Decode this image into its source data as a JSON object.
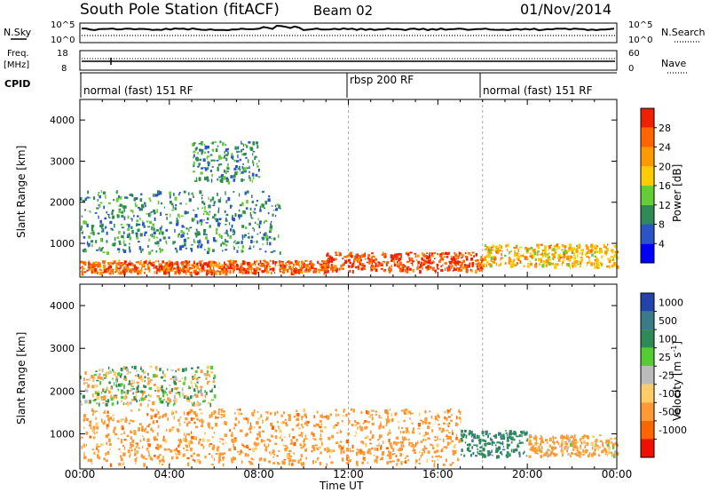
{
  "header": {
    "station": "South Pole Station (fitACF)",
    "beam": "Beam 02",
    "date": "01/Nov/2014"
  },
  "labels": {
    "nsky": "N.Sky",
    "nsearch": "N.Search",
    "freq_line1": "Freq.",
    "freq_line2": "[MHz]",
    "nave": "Nave",
    "cpid": "CPID",
    "slant_range": "Slant Range [km]",
    "time_axis": "Time UT"
  },
  "noise_panel": {
    "left_ticks": [
      "10^5",
      "10^0"
    ],
    "right_ticks": [
      "10^5",
      "10^0"
    ]
  },
  "freq_panel": {
    "left_ticks": [
      "18",
      "8"
    ],
    "right_ticks": [
      "60",
      "0"
    ]
  },
  "cpid_segments": [
    {
      "label": "normal (fast) 151 RF",
      "start_hour": 0
    },
    {
      "label": "rbsp 200 RF",
      "start_hour": 12
    },
    {
      "label": "normal (fast) 151 RF",
      "start_hour": 18
    }
  ],
  "time_ticks": [
    "00:00",
    "04:00",
    "08:00",
    "12:00",
    "16:00",
    "20:00",
    "00:00"
  ],
  "range_ticks": [
    "1000",
    "2000",
    "3000",
    "4000"
  ],
  "power_colorbar": {
    "title": "Power [dB]",
    "ticks": [
      "4",
      "8",
      "12",
      "16",
      "20",
      "24",
      "28"
    ],
    "colors": [
      "#0000ff",
      "#2a55c8",
      "#2e8b57",
      "#66cc33",
      "#ffcc00",
      "#ff9900",
      "#ff6600",
      "#ee2200"
    ]
  },
  "velocity_colorbar": {
    "title": "Velocity [m s",
    "title_sup": "-1",
    "ticks": [
      "1000",
      "500",
      "100",
      "25",
      "-25",
      "-100",
      "-500",
      "-1000"
    ],
    "colors": [
      "#2244aa",
      "#3a7a8a",
      "#2e8b57",
      "#55cc33",
      "#bbbbbb",
      "#ffcc66",
      "#ff9933",
      "#ff6600",
      "#ee1100"
    ]
  },
  "chart_data": [
    {
      "type": "heatmap",
      "title": "Power",
      "xlabel": "Time UT",
      "ylabel": "Slant Range [km]",
      "xlim": [
        0,
        24
      ],
      "ylim": [
        180,
        4500
      ],
      "colorbar_title": "Power [dB]",
      "colorbar_range": [
        0,
        30
      ],
      "dominant_echo_band_km": [
        300,
        700
      ],
      "approx_regions": [
        {
          "hours": [
            0,
            11
          ],
          "range_km": [
            300,
            600
          ],
          "level_db": 24
        },
        {
          "hours": [
            11,
            18
          ],
          "range_km": [
            350,
            800
          ],
          "level_db": 26
        },
        {
          "hours": [
            18,
            24
          ],
          "range_km": [
            450,
            1000
          ],
          "level_db": 18
        },
        {
          "hours": [
            0,
            9
          ],
          "range_km": [
            800,
            2300
          ],
          "level_db": 8
        },
        {
          "hours": [
            5,
            8
          ],
          "range_km": [
            2500,
            3500
          ],
          "level_db": 8
        }
      ]
    },
    {
      "type": "heatmap",
      "title": "Velocity",
      "xlabel": "Time UT",
      "ylabel": "Slant Range [km]",
      "xlim": [
        0,
        24
      ],
      "ylim": [
        180,
        4500
      ],
      "colorbar_title": "Velocity [m s-1]",
      "colorbar_levels": [
        1000,
        500,
        100,
        25,
        -25,
        -100,
        -500,
        -1000
      ],
      "approx_regions": [
        {
          "hours": [
            0,
            17
          ],
          "range_km": [
            300,
            1600
          ],
          "velocity": -300
        },
        {
          "hours": [
            0,
            6
          ],
          "range_km": [
            1700,
            2600
          ],
          "velocity": 0
        },
        {
          "hours": [
            17,
            20
          ],
          "range_km": [
            500,
            1100
          ],
          "velocity": 400
        },
        {
          "hours": [
            20,
            24
          ],
          "range_km": [
            500,
            1000
          ],
          "velocity": -200
        }
      ]
    }
  ]
}
